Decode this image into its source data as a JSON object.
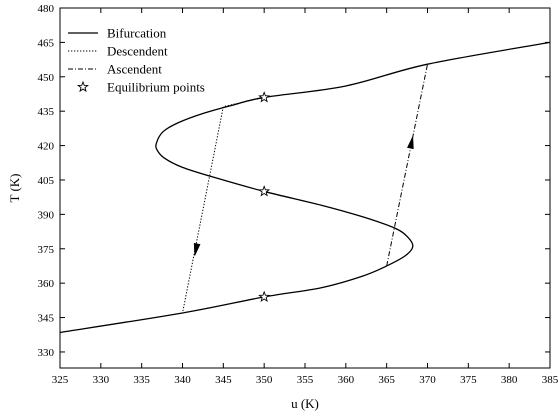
{
  "chart_data": {
    "type": "line",
    "title": "",
    "xlabel": "u (K)",
    "ylabel": "T (K)",
    "xlim": [
      325,
      385
    ],
    "ylim": [
      323,
      480
    ],
    "xticks": [
      325,
      330,
      335,
      340,
      345,
      350,
      355,
      360,
      365,
      370,
      375,
      380,
      385
    ],
    "yticks": [
      330,
      345,
      360,
      375,
      390,
      405,
      420,
      435,
      450,
      465,
      480
    ],
    "grid": false,
    "legend_position": "top-left",
    "series": [
      {
        "name": "Bifurcation",
        "style": "solid",
        "color": "#000000",
        "points": [
          [
            325,
            338.5
          ],
          [
            340,
            347
          ],
          [
            350,
            354
          ],
          [
            357,
            358
          ],
          [
            362,
            363
          ],
          [
            365,
            367.5
          ],
          [
            367.3,
            372
          ],
          [
            368.2,
            376
          ],
          [
            367.6,
            380
          ],
          [
            366,
            384
          ],
          [
            362,
            389
          ],
          [
            357,
            394
          ],
          [
            350,
            400
          ],
          [
            344,
            406
          ],
          [
            340,
            410.5
          ],
          [
            337.8,
            414.5
          ],
          [
            336.9,
            418
          ],
          [
            336.8,
            421
          ],
          [
            337.6,
            426
          ],
          [
            339.5,
            430
          ],
          [
            342.5,
            434
          ],
          [
            346,
            437.5
          ],
          [
            350,
            441
          ],
          [
            360,
            446
          ],
          [
            370,
            455.5
          ],
          [
            385,
            465
          ]
        ]
      },
      {
        "name": "Descendent",
        "style": "dotted",
        "color": "#000000",
        "points": [
          [
            350,
            441
          ],
          [
            345,
            437
          ],
          [
            340,
            347
          ]
        ],
        "arrow": {
          "at": [
            341.5,
            372
          ],
          "direction": "down"
        }
      },
      {
        "name": "Ascendent",
        "style": "dashdot",
        "color": "#000000",
        "points": [
          [
            365,
            367.5
          ],
          [
            370,
            455.5
          ]
        ],
        "arrow": {
          "at": [
            368.2,
            424
          ],
          "direction": "up"
        }
      },
      {
        "name": "Equilibrium points",
        "style": "marker",
        "marker": "star",
        "points": [
          [
            350,
            354
          ],
          [
            350,
            400
          ],
          [
            350,
            441
          ]
        ]
      }
    ]
  }
}
